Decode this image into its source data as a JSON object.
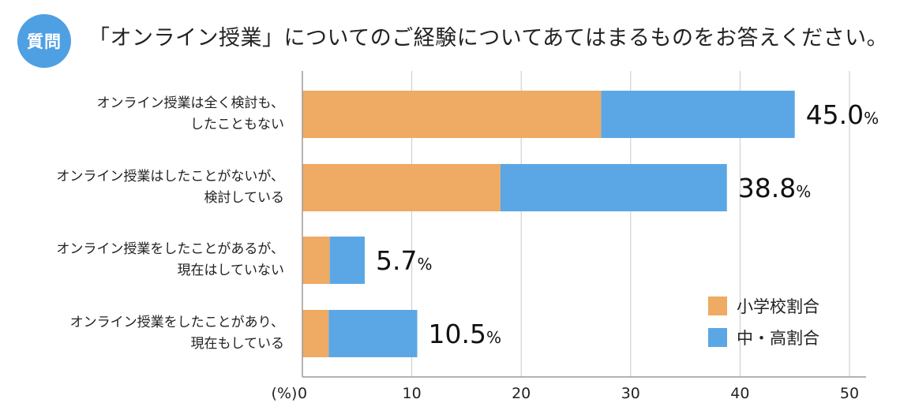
{
  "header": {
    "badge": "質問",
    "question": "「オンライン授業」についてのご経験についてあてはまるものをお答えください。"
  },
  "chart_data": {
    "type": "bar",
    "orientation": "horizontal",
    "stacked": true,
    "categories": [
      [
        "オンライン授業は全く検討も、",
        "したこともない"
      ],
      [
        "オンライン授業はしたことがないが、",
        "検討している"
      ],
      [
        "オンライン授業をしたことがあるが、",
        "現在はしていない"
      ],
      [
        "オンライン授業をしたことがあり、",
        "現在もしている"
      ]
    ],
    "series": [
      {
        "name": "小学校割合",
        "color": "#efaa63",
        "values": [
          27.3,
          18.1,
          2.5,
          2.4
        ]
      },
      {
        "name": "中・高割合",
        "color": "#5ba7e6",
        "values": [
          17.7,
          20.7,
          3.2,
          8.1
        ]
      }
    ],
    "totals": [
      "45.0",
      "38.8",
      "5.7",
      "10.5"
    ],
    "total_unit": "%",
    "xlim": [
      0,
      50
    ],
    "xticks": [
      0,
      10,
      20,
      30,
      40,
      50
    ],
    "xunit_label": "(%)",
    "grid": true,
    "legend_position": "bottom-right"
  }
}
